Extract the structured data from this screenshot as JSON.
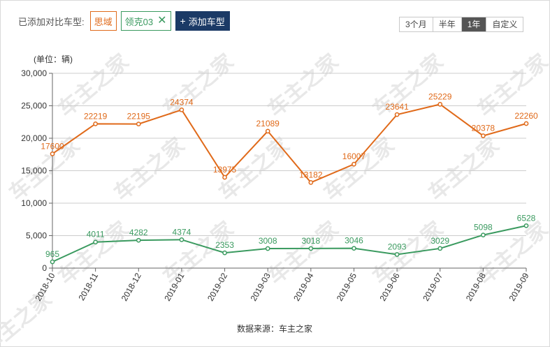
{
  "header": {
    "added_label": "已添加对比车型:",
    "tags": [
      {
        "name": "思域",
        "color": "#e06a1a",
        "removable": false
      },
      {
        "name": "领克03",
        "color": "#3a9a5f",
        "removable": true
      }
    ],
    "add_button": "添加车型",
    "range_options": [
      "3个月",
      "半年",
      "1年",
      "自定义"
    ],
    "range_selected": "1年"
  },
  "unit_label": "(单位：辆)",
  "source_label": "数据来源：车主之家",
  "watermark": "车主之家",
  "chart_data": {
    "type": "line",
    "categories": [
      "2018-10",
      "2018-11",
      "2018-12",
      "2019-01",
      "2019-02",
      "2019-03",
      "2019-04",
      "2019-05",
      "2019-06",
      "2019-07",
      "2019-08",
      "2019-09"
    ],
    "ylim": [
      0,
      30000
    ],
    "yticks": [
      0,
      5000,
      10000,
      15000,
      20000,
      25000,
      30000
    ],
    "ytick_labels": [
      "0",
      "5,000",
      "10,000",
      "15,000",
      "20,000",
      "25,000",
      "30,000"
    ],
    "grid": true,
    "series": [
      {
        "name": "思域",
        "color": "#e06a1a",
        "values": [
          17600,
          22219,
          22195,
          24374,
          13975,
          21089,
          13182,
          16007,
          23641,
          25229,
          20378,
          22260
        ]
      },
      {
        "name": "领克03",
        "color": "#3a9a5f",
        "values": [
          965,
          4011,
          4282,
          4374,
          2353,
          3008,
          3018,
          3046,
          2093,
          3029,
          5098,
          6528
        ]
      }
    ]
  }
}
